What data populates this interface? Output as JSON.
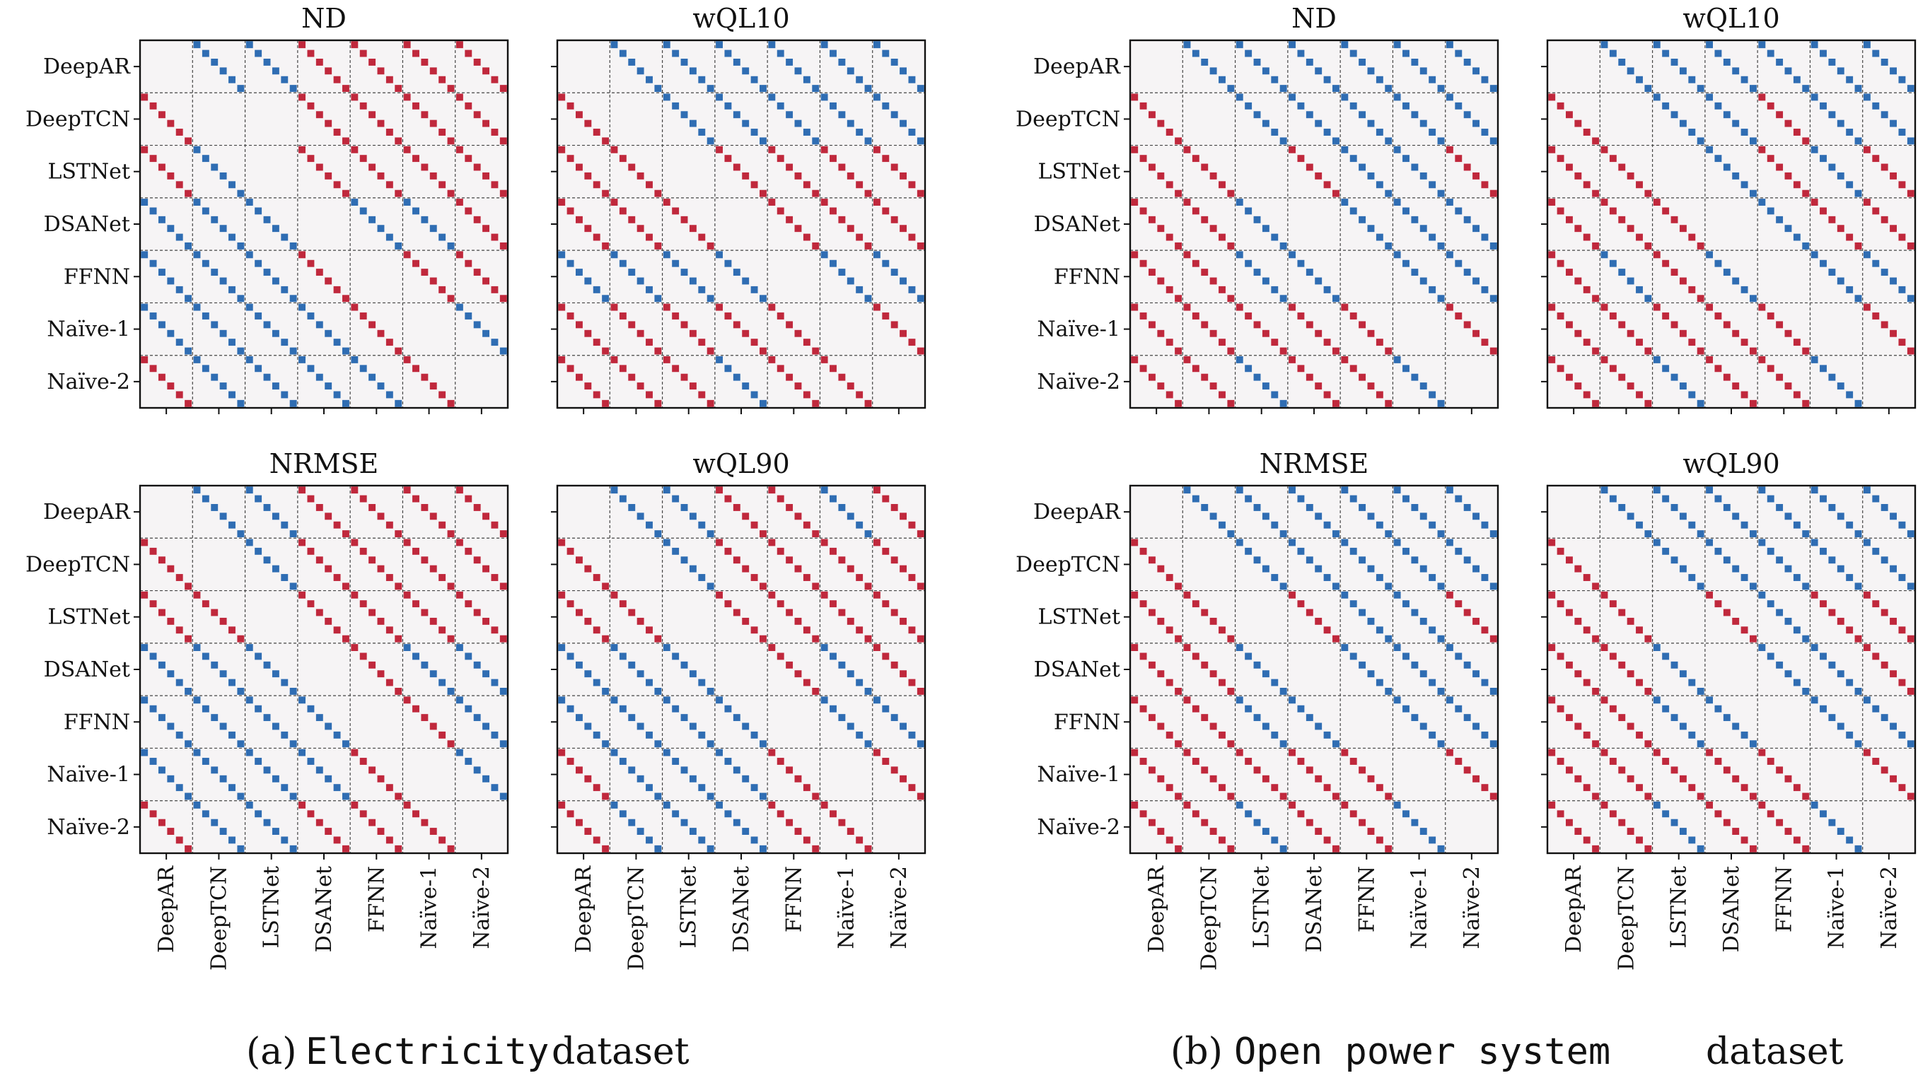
{
  "figure": {
    "captions": [
      {
        "label": "(a)",
        "dataset": "Electricity",
        "suffix": "dataset"
      },
      {
        "label": "(b)",
        "dataset": "Open power system",
        "suffix": "dataset"
      }
    ]
  },
  "colors": {
    "red": "#c0283c",
    "blue": "#2f6db3",
    "panel_bg": "#f6f4f5",
    "grid": "#444444"
  },
  "chart_data": {
    "type": "heatmap",
    "description_of_encoding": "7x7 block grid; each block compares model pairs across 6 series positions; red = row model significantly better, blue = significantly worse",
    "models": [
      "DeepAR",
      "DeepTCN",
      "LSTNet",
      "DSANet",
      "FFNN",
      "Naïve-1",
      "Naïve-2"
    ],
    "cells_per_block": 6,
    "datasets": [
      {
        "name": "Electricity",
        "panels": [
          {
            "title": "ND",
            "matrix": [
              [
                "",
                "B",
                "B",
                "R",
                "R",
                "R",
                "R"
              ],
              [
                "R",
                "",
                "",
                "R",
                "R",
                "R",
                "R"
              ],
              [
                "R",
                "B",
                "",
                "R",
                "R",
                "R",
                "R"
              ],
              [
                "B",
                "B",
                "B",
                "",
                "B",
                "B",
                "R"
              ],
              [
                "B",
                "B",
                "B",
                "R",
                "",
                "R",
                "R"
              ],
              [
                "B",
                "B",
                "B",
                "B",
                "R",
                "",
                "B"
              ],
              [
                "R",
                "B",
                "B",
                "B",
                "B",
                "R",
                ""
              ]
            ]
          },
          {
            "title": "wQL10",
            "matrix": [
              [
                "",
                "B",
                "B",
                "B",
                "B",
                "B",
                "B"
              ],
              [
                "R",
                "",
                "B",
                "B",
                "B",
                "B",
                "B"
              ],
              [
                "R",
                "R",
                "",
                "R",
                "R",
                "R",
                "R"
              ],
              [
                "R",
                "R",
                "R",
                "",
                "R",
                "R",
                "R"
              ],
              [
                "B",
                "B",
                "B",
                "B",
                "",
                "B",
                "B"
              ],
              [
                "R",
                "R",
                "R",
                "R",
                "R",
                "",
                "R"
              ],
              [
                "R",
                "R",
                "R",
                "B",
                "R",
                "R",
                ""
              ]
            ]
          },
          {
            "title": "NRMSE",
            "matrix": [
              [
                "",
                "B",
                "B",
                "R",
                "R",
                "R",
                "R"
              ],
              [
                "R",
                "",
                "B",
                "R",
                "R",
                "R",
                "R"
              ],
              [
                "R",
                "R",
                "",
                "R",
                "R",
                "R",
                "R"
              ],
              [
                "B",
                "B",
                "B",
                "",
                "R",
                "B",
                "B"
              ],
              [
                "B",
                "B",
                "B",
                "B",
                "",
                "R",
                "B"
              ],
              [
                "B",
                "B",
                "B",
                "B",
                "R",
                "",
                "B"
              ],
              [
                "R",
                "B",
                "B",
                "R",
                "R",
                "R",
                ""
              ]
            ]
          },
          {
            "title": "wQL90",
            "matrix": [
              [
                "",
                "B",
                "B",
                "R",
                "R",
                "B",
                "R"
              ],
              [
                "R",
                "",
                "B",
                "R",
                "R",
                "R",
                "R"
              ],
              [
                "R",
                "R",
                "",
                "R",
                "R",
                "R",
                "R"
              ],
              [
                "B",
                "B",
                "B",
                "",
                "R",
                "B",
                "R"
              ],
              [
                "B",
                "B",
                "B",
                "B",
                "",
                "B",
                "B"
              ],
              [
                "R",
                "B",
                "B",
                "B",
                "R",
                "",
                "R"
              ],
              [
                "R",
                "B",
                "B",
                "B",
                "R",
                "R",
                ""
              ]
            ]
          }
        ]
      },
      {
        "name": "Open power system",
        "panels": [
          {
            "title": "ND",
            "matrix": [
              [
                "",
                "B",
                "B",
                "B",
                "B",
                "B",
                "B"
              ],
              [
                "R",
                "",
                "B",
                "B",
                "B",
                "B",
                "B"
              ],
              [
                "R",
                "R",
                "",
                "R",
                "B",
                "B",
                "R"
              ],
              [
                "R",
                "R",
                "B",
                "",
                "B",
                "B",
                "B"
              ],
              [
                "R",
                "R",
                "B",
                "B",
                "",
                "B",
                "B"
              ],
              [
                "R",
                "R",
                "R",
                "R",
                "R",
                "",
                "R"
              ],
              [
                "R",
                "R",
                "B",
                "R",
                "R",
                "B",
                ""
              ]
            ]
          },
          {
            "title": "wQL10",
            "matrix": [
              [
                "",
                "B",
                "B",
                "B",
                "B",
                "B",
                "B"
              ],
              [
                "R",
                "",
                "B",
                "B",
                "R",
                "B",
                "B"
              ],
              [
                "R",
                "R",
                "",
                "B",
                "R",
                "B",
                "R"
              ],
              [
                "R",
                "R",
                "R",
                "",
                "B",
                "R",
                "R"
              ],
              [
                "R",
                "B",
                "R",
                "B",
                "",
                "B",
                "B"
              ],
              [
                "R",
                "R",
                "R",
                "R",
                "R",
                "",
                "R"
              ],
              [
                "R",
                "R",
                "B",
                "R",
                "R",
                "B",
                ""
              ]
            ]
          },
          {
            "title": "NRMSE",
            "matrix": [
              [
                "",
                "B",
                "B",
                "B",
                "B",
                "B",
                "B"
              ],
              [
                "R",
                "",
                "B",
                "B",
                "B",
                "B",
                "B"
              ],
              [
                "R",
                "R",
                "",
                "R",
                "B",
                "B",
                "R"
              ],
              [
                "R",
                "R",
                "B",
                "",
                "B",
                "B",
                "B"
              ],
              [
                "R",
                "R",
                "B",
                "B",
                "",
                "B",
                "B"
              ],
              [
                "R",
                "R",
                "R",
                "R",
                "R",
                "",
                "R"
              ],
              [
                "R",
                "R",
                "B",
                "R",
                "R",
                "B",
                ""
              ]
            ]
          },
          {
            "title": "wQL90",
            "matrix": [
              [
                "",
                "B",
                "B",
                "B",
                "B",
                "B",
                "B"
              ],
              [
                "R",
                "",
                "B",
                "B",
                "B",
                "B",
                "B"
              ],
              [
                "R",
                "R",
                "",
                "R",
                "B",
                "R",
                "R"
              ],
              [
                "R",
                "R",
                "B",
                "",
                "B",
                "B",
                "R"
              ],
              [
                "R",
                "R",
                "B",
                "B",
                "",
                "B",
                "B"
              ],
              [
                "R",
                "R",
                "R",
                "R",
                "R",
                "",
                "R"
              ],
              [
                "R",
                "R",
                "B",
                "R",
                "R",
                "B",
                ""
              ]
            ]
          }
        ]
      }
    ]
  }
}
